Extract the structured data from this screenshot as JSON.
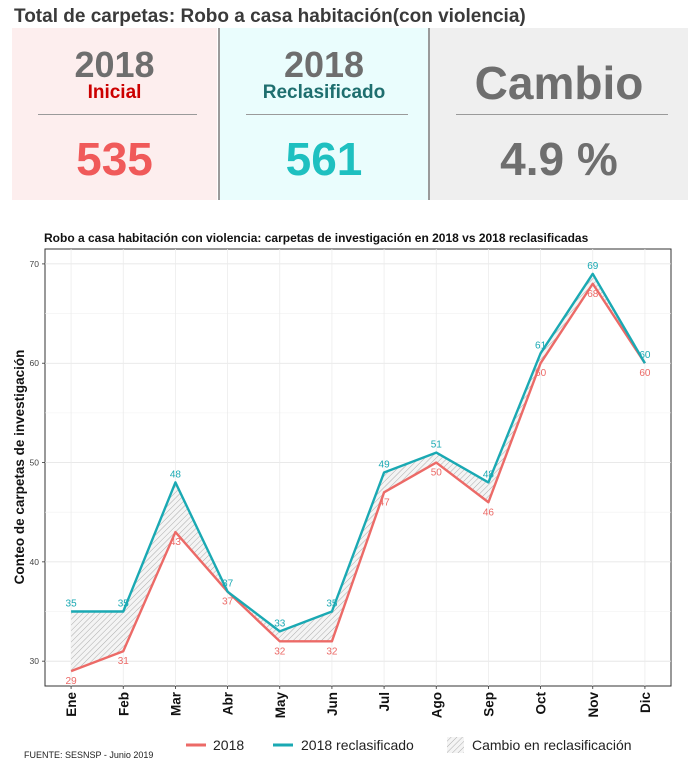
{
  "page_title": "Total de carpetas: Robo a casa habitación(con violencia)",
  "panels": {
    "initial": {
      "year": "2018",
      "label": "Inicial",
      "value": "535"
    },
    "reclass": {
      "year": "2018",
      "label": "Reclasificado",
      "value": "561"
    },
    "change": {
      "label": "Cambio",
      "value": "4.9 %"
    }
  },
  "colors": {
    "initial_label": "#cc0000",
    "initial_value": "#f05a5a",
    "reclass_label": "#1f6f6f",
    "reclass_value": "#1ec0c0",
    "change_value": "#6e6e6e",
    "line_2018": "#ec6a67",
    "line_reclass": "#1aa9b3"
  },
  "footer": {
    "source": "FUENTE: SESNSP - Junio 2019"
  },
  "chart_data": {
    "type": "line",
    "title": "Robo a casa habitación con violencia: carpetas de investigación en 2018 vs 2018 reclasificadas",
    "xlabel": "",
    "ylabel": "Conteo de carpetas de investigación",
    "categories": [
      "Ene",
      "Feb",
      "Mar",
      "Abr",
      "May",
      "Jun",
      "Jul",
      "Ago",
      "Sep",
      "Oct",
      "Nov",
      "Dic"
    ],
    "series": [
      {
        "name": "2018",
        "color": "#ec6a67",
        "values": [
          29,
          31,
          43,
          37,
          32,
          32,
          47,
          50,
          46,
          60,
          68,
          60
        ]
      },
      {
        "name": "2018 reclasificado",
        "color": "#1aa9b3",
        "values": [
          35,
          35,
          48,
          37,
          33,
          35,
          49,
          51,
          48,
          61,
          69,
          60
        ]
      }
    ],
    "band_legend": "Cambio en reclasificación",
    "ylim": [
      27.5,
      71.5
    ],
    "yticks": [
      30,
      40,
      50,
      60,
      70
    ],
    "grid": true,
    "legend_position": "bottom"
  }
}
